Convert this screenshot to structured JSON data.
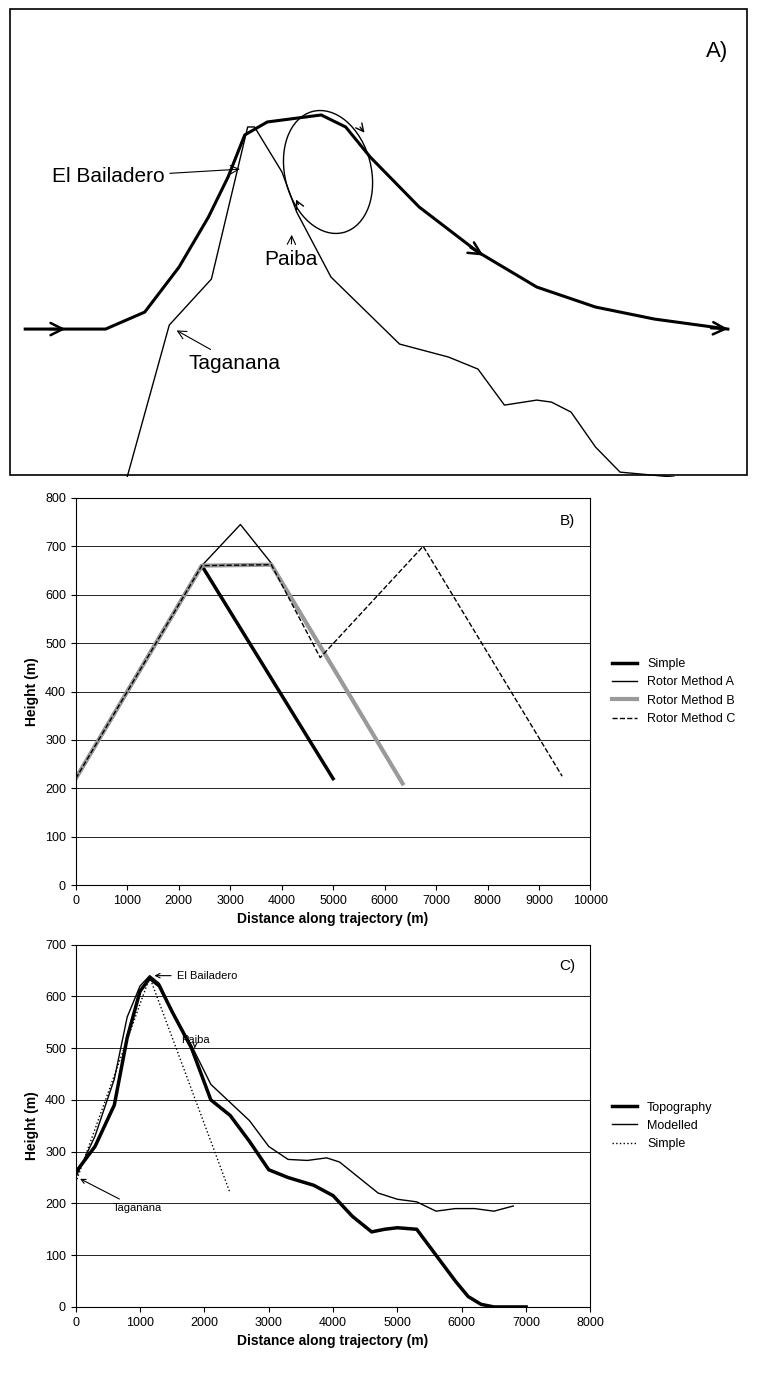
{
  "diagram": {
    "title": "A)",
    "labels": [
      "El Bailadero",
      "Paiba",
      "Taganana"
    ]
  },
  "chart_data": [
    {
      "type": "line",
      "title": "B)",
      "x_label": "Distance along trajectory (m)",
      "y_label": "Height (m)",
      "xlim": [
        0,
        10000
      ],
      "xticks": [
        0,
        1000,
        2000,
        3000,
        4000,
        5000,
        6000,
        7000,
        8000,
        9000,
        10000
      ],
      "ylim": [
        0,
        800
      ],
      "yticks": [
        0,
        100,
        200,
        300,
        400,
        500,
        600,
        700,
        800
      ],
      "grid": true,
      "legend": "center left",
      "series": [
        {
          "name": "Simple",
          "color": "#000000",
          "line_style": "solid",
          "x": [
            0,
            2450,
            5000
          ],
          "values": [
            220,
            660,
            220
          ]
        },
        {
          "name": "Rotor Method A",
          "color": "#000000",
          "line_style": "solid",
          "x": [
            0,
            2450,
            3200,
            3800,
            6350
          ],
          "values": [
            220,
            660,
            745,
            665,
            210
          ]
        },
        {
          "name": "Rotor Method B",
          "color": "#9a9a9a",
          "line_style": "solid",
          "x": [
            0,
            2450,
            3800,
            6350
          ],
          "values": [
            220,
            660,
            662,
            210
          ]
        },
        {
          "name": "Rotor Method C",
          "color": "#000000",
          "line_style": "dashed",
          "x": [
            0,
            2450,
            3800,
            4750,
            6750,
            9450
          ],
          "values": [
            220,
            660,
            662,
            470,
            700,
            225
          ]
        }
      ]
    },
    {
      "type": "line",
      "title": "C)",
      "x_label": "Distance along trajectory (m)",
      "y_label": "Height (m)",
      "xlim": [
        0,
        8000
      ],
      "xticks": [
        0,
        1000,
        2000,
        3000,
        4000,
        5000,
        6000,
        7000,
        8000
      ],
      "ylim": [
        0,
        700
      ],
      "yticks": [
        0,
        100,
        200,
        300,
        400,
        500,
        600,
        700
      ],
      "grid": true,
      "legend": "center left",
      "annotations": [
        {
          "text": "El Bailadero",
          "x": 1180,
          "y": 640
        },
        {
          "text": "Paiba",
          "x": 1850,
          "y": 500
        },
        {
          "text": "Taganana",
          "x": 30,
          "y": 250
        }
      ],
      "series": [
        {
          "name": "Topography",
          "color": "#000000",
          "line_style": "solid",
          "x": [
            0,
            300,
            600,
            800,
            1000,
            1150,
            1300,
            1500,
            1800,
            2100,
            2400,
            2700,
            3000,
            3300,
            3700,
            4000,
            4300,
            4600,
            4800,
            5000,
            5300,
            5600,
            5900,
            6100,
            6300,
            6500,
            7000
          ],
          "values": [
            260,
            310,
            390,
            520,
            610,
            635,
            620,
            570,
            500,
            400,
            370,
            320,
            265,
            250,
            235,
            215,
            175,
            145,
            150,
            153,
            150,
            100,
            50,
            20,
            5,
            0,
            0
          ]
        },
        {
          "name": "Modelled",
          "color": "#000000",
          "line_style": "solid",
          "x": [
            0,
            300,
            600,
            800,
            1000,
            1150,
            1300,
            1500,
            1800,
            2100,
            2400,
            2700,
            3000,
            3300,
            3600,
            3900,
            4100,
            4400,
            4700,
            5000,
            5300,
            5600,
            5900,
            6200,
            6500,
            6800
          ],
          "values": [
            250,
            330,
            440,
            560,
            620,
            640,
            625,
            570,
            505,
            430,
            395,
            360,
            310,
            285,
            283,
            288,
            280,
            250,
            220,
            208,
            203,
            185,
            190,
            190,
            185,
            195
          ]
        },
        {
          "name": "Simple",
          "color": "#000000",
          "line_style": "dotted",
          "x": [
            0,
            1150,
            2400
          ],
          "values": [
            240,
            637,
            220
          ]
        }
      ]
    }
  ]
}
